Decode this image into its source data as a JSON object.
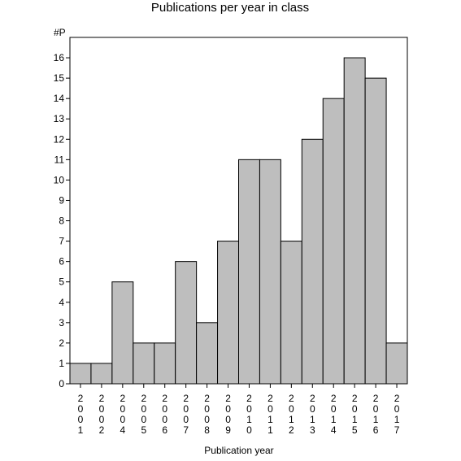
{
  "chart_data": {
    "type": "bar",
    "title": "Publications per year in class",
    "ylabel": "#P",
    "xlabel": "Publication year",
    "categories": [
      "2001",
      "2002",
      "2004",
      "2005",
      "2006",
      "2007",
      "2008",
      "2009",
      "2010",
      "2011",
      "2012",
      "2013",
      "2014",
      "2015",
      "2016",
      "2017"
    ],
    "values": [
      1,
      1,
      5,
      2,
      2,
      6,
      3,
      7,
      11,
      11,
      7,
      12,
      14,
      16,
      15,
      2
    ],
    "ylim": [
      0,
      17
    ],
    "yticks": [
      0,
      1,
      2,
      3,
      4,
      5,
      6,
      7,
      8,
      9,
      10,
      11,
      12,
      13,
      14,
      15,
      16
    ],
    "grid": false,
    "bar_color": "#bebebe",
    "edge_color": "#000000"
  }
}
